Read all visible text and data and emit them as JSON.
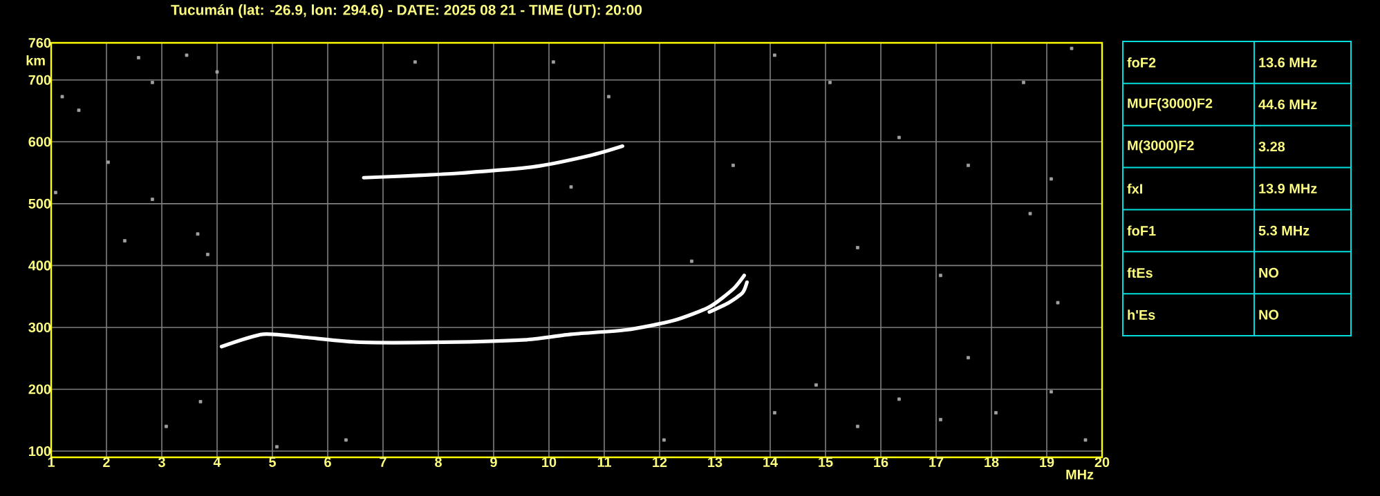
{
  "chart_data": [
    {
      "type": "scatter",
      "title": "Tucumán (lat: -26.9, lon: 294.6) - DATE: 2025 08 21 - TIME (UT): 20:00",
      "xlabel": "MHz",
      "ylabel": "km",
      "xlim": [
        1,
        20
      ],
      "ylim": [
        90,
        760
      ],
      "xticks": [
        1,
        2,
        3,
        4,
        5,
        6,
        7,
        8,
        9,
        10,
        11,
        12,
        13,
        14,
        15,
        16,
        17,
        18,
        19,
        20
      ],
      "yticks": [
        100,
        200,
        300,
        400,
        500,
        600,
        700,
        760
      ],
      "grid": true,
      "series": [
        {
          "type": "line",
          "marker": "none",
          "color": "#ffffff",
          "x": [
            4.08,
            4.83,
            5.58,
            6.58,
            8.08,
            9.58,
            10.4,
            11.4,
            12.25,
            12.9,
            13.33,
            13.53
          ],
          "values": [
            269,
            289,
            284,
            276,
            276,
            280,
            289,
            296,
            311,
            333,
            362,
            384
          ]
        },
        {
          "type": "line",
          "marker": "none",
          "color": "#ffffff",
          "x": [
            12.9,
            13.25,
            13.5,
            13.58
          ],
          "values": [
            325,
            340,
            356,
            373
          ]
        },
        {
          "type": "line",
          "marker": "none",
          "color": "#ffffff",
          "x": [
            6.65,
            8.33,
            9.75,
            10.75,
            11.33
          ],
          "values": [
            542,
            549,
            560,
            578,
            593
          ]
        },
        {
          "type": "scatter",
          "marker": "square",
          "color": "#a0a0a0",
          "x": [
            1.2,
            1.5,
            2.58,
            2.83,
            3.45,
            4.0,
            1.08,
            2.03,
            2.83,
            2.33,
            3.65,
            3.83,
            3.08,
            3.7,
            5.08,
            6.33,
            7.58,
            10.08,
            11.08,
            10.4,
            12.58,
            12.08,
            13.33,
            14.08,
            14.08,
            14.83,
            15.08,
            15.58,
            15.58,
            16.33,
            16.33,
            17.08,
            17.08,
            17.58,
            17.58,
            18.08,
            18.58,
            18.7,
            19.08,
            19.2,
            19.08,
            19.45,
            19.7
          ],
          "values": [
            673,
            651,
            736,
            696,
            740,
            713,
            518,
            567,
            507,
            440,
            451,
            418,
            140,
            180,
            107,
            118,
            729,
            729,
            673,
            527,
            407,
            118,
            562,
            740,
            162,
            207,
            696,
            429,
            140,
            607,
            184,
            384,
            151,
            562,
            251,
            162,
            696,
            484,
            540,
            340,
            196,
            751,
            118
          ]
        }
      ]
    },
    {
      "type": "other",
      "categories": [
        "foF2",
        "MUF(3000)F2",
        "M(3000)F2",
        "fxI",
        "foF1",
        "ftEs",
        "h'Es"
      ],
      "annotations": [
        "13.6 MHz",
        "44.6 MHz",
        "3.28",
        "13.9 MHz",
        "5.3 MHz",
        "NO",
        "NO"
      ]
    }
  ]
}
